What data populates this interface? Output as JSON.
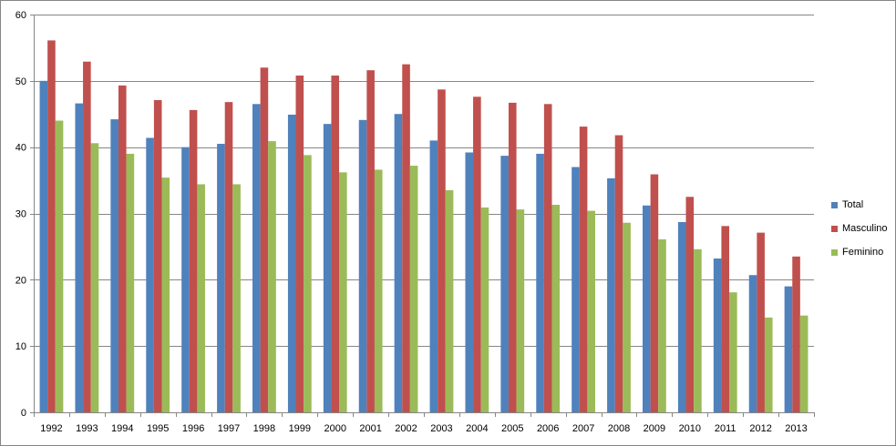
{
  "chart_data": {
    "type": "bar",
    "categories": [
      "1992",
      "1993",
      "1994",
      "1995",
      "1996",
      "1997",
      "1998",
      "1999",
      "2000",
      "2001",
      "2002",
      "2003",
      "2004",
      "2005",
      "2006",
      "2007",
      "2008",
      "2009",
      "2010",
      "2011",
      "2012",
      "2013"
    ],
    "series": [
      {
        "name": "Total",
        "color": "#4F81BD",
        "values": [
          50.0,
          46.6,
          44.2,
          41.4,
          40.0,
          40.5,
          46.5,
          44.9,
          43.5,
          44.1,
          45.0,
          41.0,
          39.2,
          38.7,
          39.0,
          37.0,
          35.3,
          31.2,
          28.7,
          23.2,
          20.7,
          19.0
        ]
      },
      {
        "name": "Masculino",
        "color": "#C0504D",
        "values": [
          56.1,
          52.9,
          49.3,
          47.1,
          45.6,
          46.8,
          52.0,
          50.8,
          50.8,
          51.6,
          52.5,
          48.7,
          47.6,
          46.7,
          46.5,
          43.1,
          41.8,
          35.9,
          32.5,
          28.1,
          27.1,
          23.5
        ]
      },
      {
        "name": "Feminino",
        "color": "#9BBB59",
        "values": [
          44.0,
          40.6,
          39.0,
          35.4,
          34.4,
          34.4,
          40.9,
          38.8,
          36.2,
          36.6,
          37.2,
          33.5,
          30.9,
          30.6,
          31.3,
          30.4,
          28.6,
          26.1,
          24.6,
          18.1,
          14.3,
          14.6
        ]
      }
    ],
    "yticks": [
      "0",
      "10",
      "20",
      "30",
      "40",
      "50",
      "60"
    ],
    "ylim": [
      0,
      60
    ],
    "title": "",
    "xlabel": "",
    "ylabel": "",
    "grid": true,
    "legend_position": "right"
  }
}
